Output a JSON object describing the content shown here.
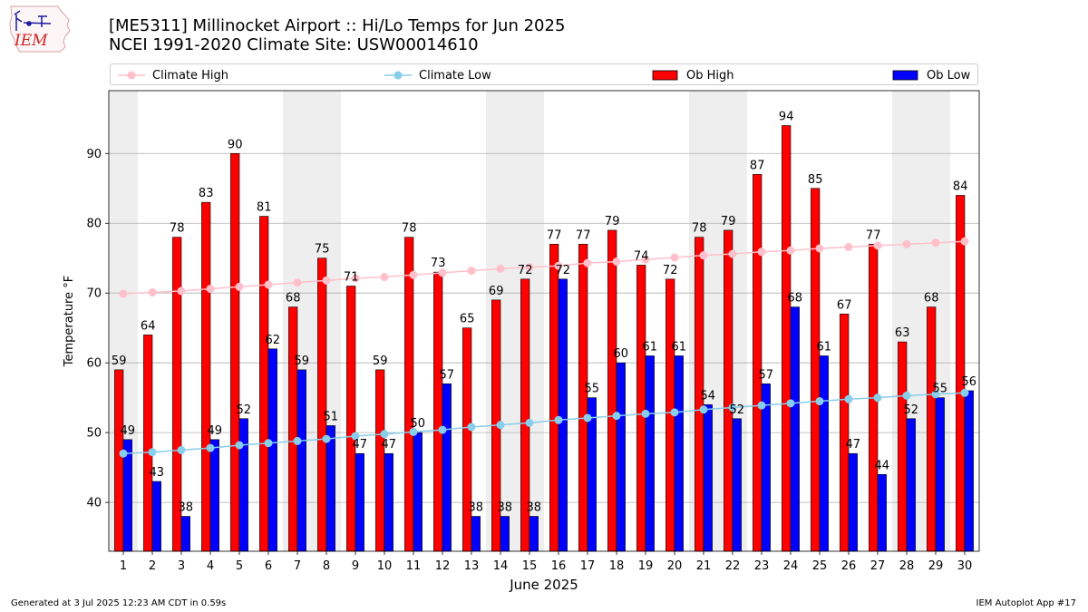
{
  "logo": {
    "text": "IEM"
  },
  "title": {
    "line1": "[ME5311] Millinocket Airport :: Hi/Lo Temps for Jun 2025",
    "line2": "NCEI 1991-2020 Climate Site: USW00014610"
  },
  "legend": {
    "climate_high": "Climate High",
    "climate_low": "Climate Low",
    "ob_high": "Ob High",
    "ob_low": "Ob Low"
  },
  "footer": {
    "left": "Generated at 3 Jul 2025 12:23 AM CDT in 0.59s",
    "right": "IEM Autoplot App #17"
  },
  "colors": {
    "ob_high": "#ff0000",
    "ob_low": "#0000ff",
    "climate_high": "#ffc0cb",
    "climate_low": "#87ceeb",
    "weekend_shade": "#eeeeee",
    "grid": "#b0b0b0"
  },
  "chart_data": {
    "type": "bar",
    "xlabel": "June 2025",
    "ylabel": "Temperature °F",
    "xlim": [
      0.5,
      30.5
    ],
    "ylim": [
      33,
      99
    ],
    "yticks": [
      40,
      50,
      60,
      70,
      80,
      90
    ],
    "grid": "y",
    "legend_position": "top",
    "weekend_days": [
      [
        1
      ],
      [
        7,
        8
      ],
      [
        14,
        15
      ],
      [
        21,
        22
      ],
      [
        28,
        29
      ]
    ],
    "x": [
      1,
      2,
      3,
      4,
      5,
      6,
      7,
      8,
      9,
      10,
      11,
      12,
      13,
      14,
      15,
      16,
      17,
      18,
      19,
      20,
      21,
      22,
      23,
      24,
      25,
      26,
      27,
      28,
      29,
      30
    ],
    "series": [
      {
        "name": "Ob High",
        "type": "bar",
        "values": [
          59,
          64,
          78,
          83,
          90,
          81,
          68,
          75,
          71,
          59,
          78,
          73,
          65,
          69,
          72,
          77,
          77,
          79,
          74,
          72,
          78,
          79,
          87,
          94,
          85,
          67,
          77,
          63,
          68,
          84
        ]
      },
      {
        "name": "Ob Low",
        "type": "bar",
        "values": [
          49,
          43,
          38,
          49,
          52,
          62,
          59,
          51,
          47,
          47,
          50,
          57,
          38,
          38,
          38,
          72,
          55,
          60,
          61,
          61,
          54,
          52,
          57,
          68,
          61,
          47,
          44,
          52,
          55,
          56
        ]
      },
      {
        "name": "Climate High",
        "type": "line",
        "values": [
          69.9,
          70.1,
          70.3,
          70.6,
          70.9,
          71.2,
          71.5,
          71.8,
          72.1,
          72.3,
          72.6,
          72.9,
          73.2,
          73.5,
          73.7,
          73.9,
          74.3,
          74.5,
          74.8,
          75.1,
          75.4,
          75.6,
          75.9,
          76.1,
          76.4,
          76.6,
          76.8,
          77.0,
          77.2,
          77.4
        ]
      },
      {
        "name": "Climate Low",
        "type": "line",
        "values": [
          47.0,
          47.2,
          47.5,
          47.8,
          48.2,
          48.5,
          48.8,
          49.1,
          49.5,
          49.8,
          50.1,
          50.4,
          50.8,
          51.1,
          51.4,
          51.8,
          52.1,
          52.4,
          52.7,
          52.9,
          53.3,
          53.6,
          53.9,
          54.2,
          54.5,
          54.8,
          55.0,
          55.3,
          55.5,
          55.7
        ]
      }
    ]
  }
}
